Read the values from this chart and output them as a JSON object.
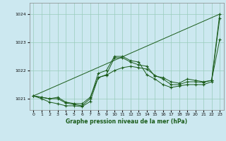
{
  "title": "Graphe pression niveau de la mer (hPa)",
  "background_color": "#cce8f0",
  "grid_color": "#99ccbb",
  "line_color": "#1a5c1a",
  "xlim": [
    -0.5,
    23.5
  ],
  "ylim": [
    1020.6,
    1024.4
  ],
  "xticks": [
    0,
    1,
    2,
    3,
    4,
    5,
    6,
    7,
    8,
    9,
    10,
    11,
    12,
    13,
    14,
    15,
    16,
    17,
    18,
    19,
    20,
    21,
    22,
    23
  ],
  "yticks": [
    1021,
    1022,
    1023,
    1024
  ],
  "figsize": [
    3.2,
    2.0
  ],
  "dpi": 100,
  "series": [
    {
      "x": [
        0,
        1,
        2,
        3,
        4,
        5,
        6,
        7,
        8,
        9,
        10,
        11,
        12,
        13,
        14,
        15,
        16,
        17,
        18,
        19,
        20,
        21,
        22,
        23
      ],
      "y": [
        1021.1,
        1021.05,
        1021.0,
        1021.0,
        1020.85,
        1020.8,
        1020.75,
        1021.0,
        1021.9,
        1022.0,
        1022.5,
        1022.5,
        1022.35,
        1022.3,
        1021.85,
        1021.7,
        1021.5,
        1021.4,
        1021.45,
        1021.5,
        1021.5,
        1021.5,
        1021.6,
        1023.85
      ],
      "marker": "+"
    },
    {
      "x": [
        0,
        1,
        2,
        3,
        4,
        5,
        6,
        7,
        8,
        9,
        10,
        11,
        12,
        13,
        14,
        15,
        16,
        17,
        18,
        19,
        20,
        21,
        22,
        23
      ],
      "y": [
        1021.1,
        1021.0,
        1020.88,
        1020.82,
        1020.75,
        1020.75,
        1020.72,
        1020.9,
        1021.75,
        1021.85,
        1022.45,
        1022.45,
        1022.3,
        1022.2,
        1022.15,
        1021.8,
        1021.75,
        1021.6,
        1021.55,
        1021.7,
        1021.65,
        1021.6,
        1021.65,
        1024.0
      ],
      "marker": "+"
    },
    {
      "x": [
        0,
        1,
        2,
        3,
        4,
        5,
        6,
        7,
        8,
        9,
        10,
        11,
        12,
        13,
        14,
        15,
        16,
        17,
        18,
        19,
        20,
        21,
        22,
        23
      ],
      "y": [
        1021.1,
        1021.05,
        1021.0,
        1021.05,
        1020.88,
        1020.83,
        1020.82,
        1021.05,
        1021.75,
        1021.83,
        1022.0,
        1022.1,
        1022.15,
        1022.1,
        1022.05,
        1021.83,
        1021.7,
        1021.5,
        1021.5,
        1021.6,
        1021.6,
        1021.58,
        1021.65,
        1023.1
      ],
      "marker": "+"
    },
    {
      "x": [
        0,
        23
      ],
      "y": [
        1021.1,
        1024.0
      ],
      "marker": null
    }
  ]
}
